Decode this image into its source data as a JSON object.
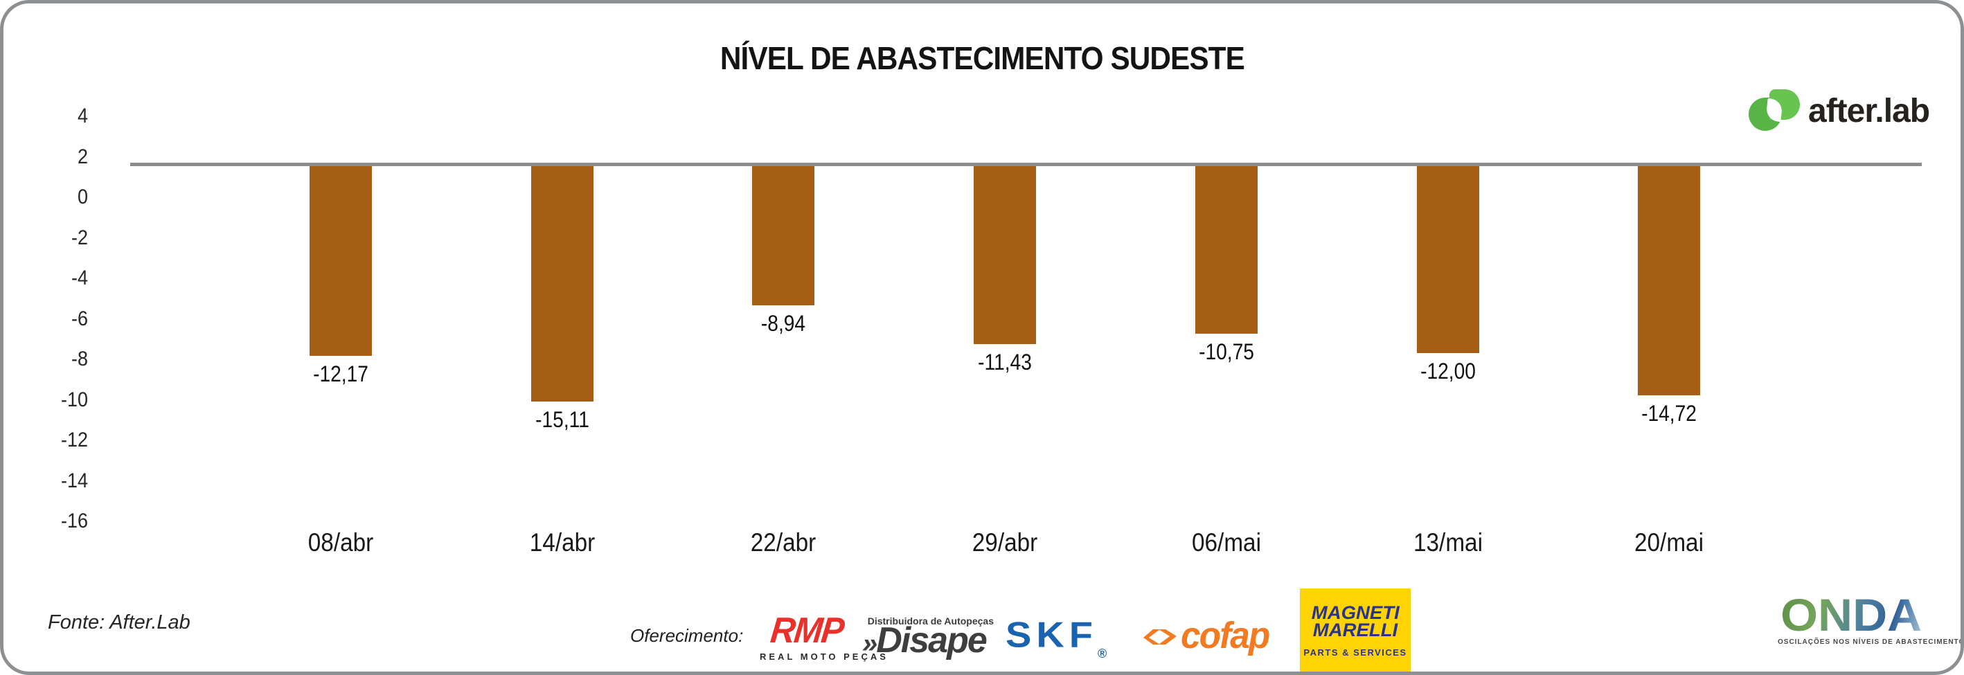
{
  "frame": {
    "background": "#ffffff",
    "border_color": "#8d9093"
  },
  "title": "NÍVEL DE ABASTECIMENTO SUDESTE",
  "brand": {
    "wordmark": "after.lab",
    "icon": "after-lab-leaves-icon",
    "green": "#63c14d",
    "text_color": "#26231f"
  },
  "chart_data": {
    "type": "bar",
    "title": "NÍVEL DE ABASTECIMENTO SUDESTE",
    "categories": [
      "08/abr",
      "14/abr",
      "22/abr",
      "29/abr",
      "06/mai",
      "13/mai",
      "20/mai"
    ],
    "values": [
      -12.17,
      -15.11,
      -8.94,
      -11.43,
      -10.75,
      -12,
      -14.72
    ],
    "value_labels": [
      "-12,17",
      "-15,11",
      "-8,94",
      "-11,43",
      "-10,75",
      "-12,00",
      "-14,72"
    ],
    "y_ticks": [
      4,
      2,
      0,
      -2,
      -4,
      -6,
      -8,
      -10,
      -12,
      -14,
      -16
    ],
    "ylim": [
      -16,
      4
    ],
    "xlabel": "",
    "ylabel": "",
    "grid": false,
    "legend": null,
    "bar_color": "#a65d16",
    "baseline_color": "#8c8c8c"
  },
  "footer": {
    "source": "Fonte: After.Lab",
    "sponsor_label": "Oferecimento:",
    "sponsors": {
      "rmp": {
        "name": "RMP",
        "caption": "REAL MOTO PEÇAS",
        "color": "#e8312a"
      },
      "disape": {
        "prefix": "»",
        "name": "Disape",
        "caption": "Distribuidora de Autopeças",
        "color": "#3e3e40"
      },
      "skf": {
        "name": "SKF",
        "reg": "®",
        "color": "#1a63ae"
      },
      "cofap": {
        "name": "cofap",
        "color": "#f27a21"
      },
      "magneti": {
        "line1": "MAGNETI",
        "line2": "MARELLI",
        "caption": "PARTS & SERVICES",
        "bg": "#ffd402",
        "text_color": "#283390"
      },
      "onda": {
        "name": "ONDA",
        "caption": "OSCILAÇÕES NOS NÍVEIS DE ABASTECIMENTO E PREÇOS"
      }
    }
  }
}
